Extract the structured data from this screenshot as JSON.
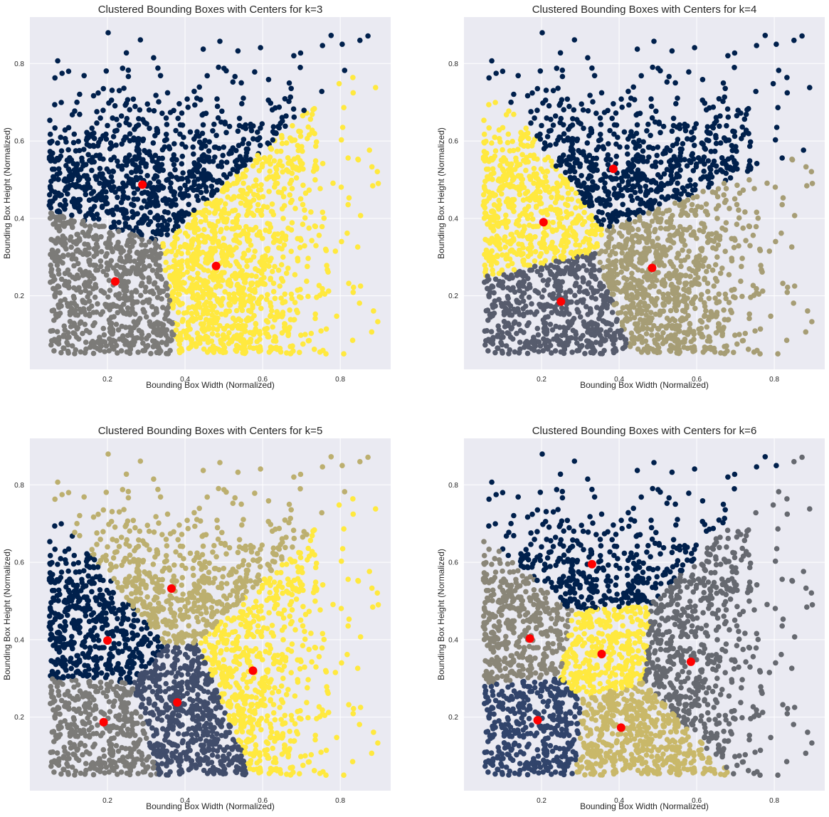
{
  "figure": {
    "background": "#ffffff",
    "axes_facecolor": "#eaeaf2",
    "grid_color": "#ffffff",
    "center_color": "#ff0000"
  },
  "chart_data": [
    {
      "type": "scatter",
      "title": "Clustered Bounding Boxes with Centers for k=3",
      "xlabel": "Bounding Box Width (Normalized)",
      "ylabel": "Bounding Box Height (Normalized)",
      "xlim": [
        0.0,
        0.93
      ],
      "ylim": [
        0.01,
        0.92
      ],
      "xticks": [
        0.2,
        0.4,
        0.6,
        0.8
      ],
      "yticks": [
        0.2,
        0.4,
        0.6,
        0.8
      ],
      "grid": true,
      "k": 3,
      "clusters": [
        {
          "color": "#00204c",
          "center": [
            0.29,
            0.487
          ]
        },
        {
          "color": "#7c7b78",
          "center": [
            0.22,
            0.237
          ]
        },
        {
          "color": "#ffe93f",
          "center": [
            0.48,
            0.277
          ]
        }
      ]
    },
    {
      "type": "scatter",
      "title": "Clustered Bounding Boxes with Centers for k=4",
      "xlabel": "Bounding Box Width (Normalized)",
      "ylabel": "Bounding Box Height (Normalized)",
      "xlim": [
        0.0,
        0.93
      ],
      "ylim": [
        0.01,
        0.92
      ],
      "xticks": [
        0.2,
        0.4,
        0.6,
        0.8
      ],
      "yticks": [
        0.2,
        0.4,
        0.6,
        0.8
      ],
      "grid": true,
      "k": 4,
      "clusters": [
        {
          "color": "#00204c",
          "center": [
            0.385,
            0.528
          ]
        },
        {
          "color": "#ffe93f",
          "center": [
            0.205,
            0.39
          ]
        },
        {
          "color": "#575c6d",
          "center": [
            0.25,
            0.185
          ]
        },
        {
          "color": "#a69d75",
          "center": [
            0.485,
            0.272
          ]
        }
      ]
    },
    {
      "type": "scatter",
      "title": "Clustered Bounding Boxes with Centers for k=5",
      "xlabel": "Bounding Box Width (Normalized)",
      "ylabel": "Bounding Box Height (Normalized)",
      "xlim": [
        0.0,
        0.93
      ],
      "ylim": [
        0.01,
        0.92
      ],
      "xticks": [
        0.2,
        0.4,
        0.6,
        0.8
      ],
      "yticks": [
        0.2,
        0.4,
        0.6,
        0.8
      ],
      "grid": true,
      "k": 5,
      "clusters": [
        {
          "color": "#00204c",
          "center": [
            0.2,
            0.398
          ]
        },
        {
          "color": "#bcaf6f",
          "center": [
            0.365,
            0.532
          ]
        },
        {
          "color": "#7c7b78",
          "center": [
            0.19,
            0.187
          ]
        },
        {
          "color": "#414d6b",
          "center": [
            0.38,
            0.238
          ]
        },
        {
          "color": "#ffe93f",
          "center": [
            0.575,
            0.32
          ]
        }
      ]
    },
    {
      "type": "scatter",
      "title": "Clustered Bounding Boxes with Centers for k=6",
      "xlabel": "Bounding Box Width (Normalized)",
      "ylabel": "Bounding Box Height (Normalized)",
      "xlim": [
        0.0,
        0.93
      ],
      "ylim": [
        0.01,
        0.92
      ],
      "xticks": [
        0.2,
        0.4,
        0.6,
        0.8
      ],
      "yticks": [
        0.2,
        0.4,
        0.6,
        0.8
      ],
      "grid": true,
      "k": 6,
      "clusters": [
        {
          "color": "#00204c",
          "center": [
            0.33,
            0.595
          ]
        },
        {
          "color": "#8a8678",
          "center": [
            0.17,
            0.403
          ]
        },
        {
          "color": "#ffe93f",
          "center": [
            0.355,
            0.363
          ]
        },
        {
          "color": "#666970",
          "center": [
            0.585,
            0.343
          ]
        },
        {
          "color": "#31446b",
          "center": [
            0.19,
            0.192
          ]
        },
        {
          "color": "#c9b869",
          "center": [
            0.405,
            0.173
          ]
        }
      ]
    }
  ]
}
